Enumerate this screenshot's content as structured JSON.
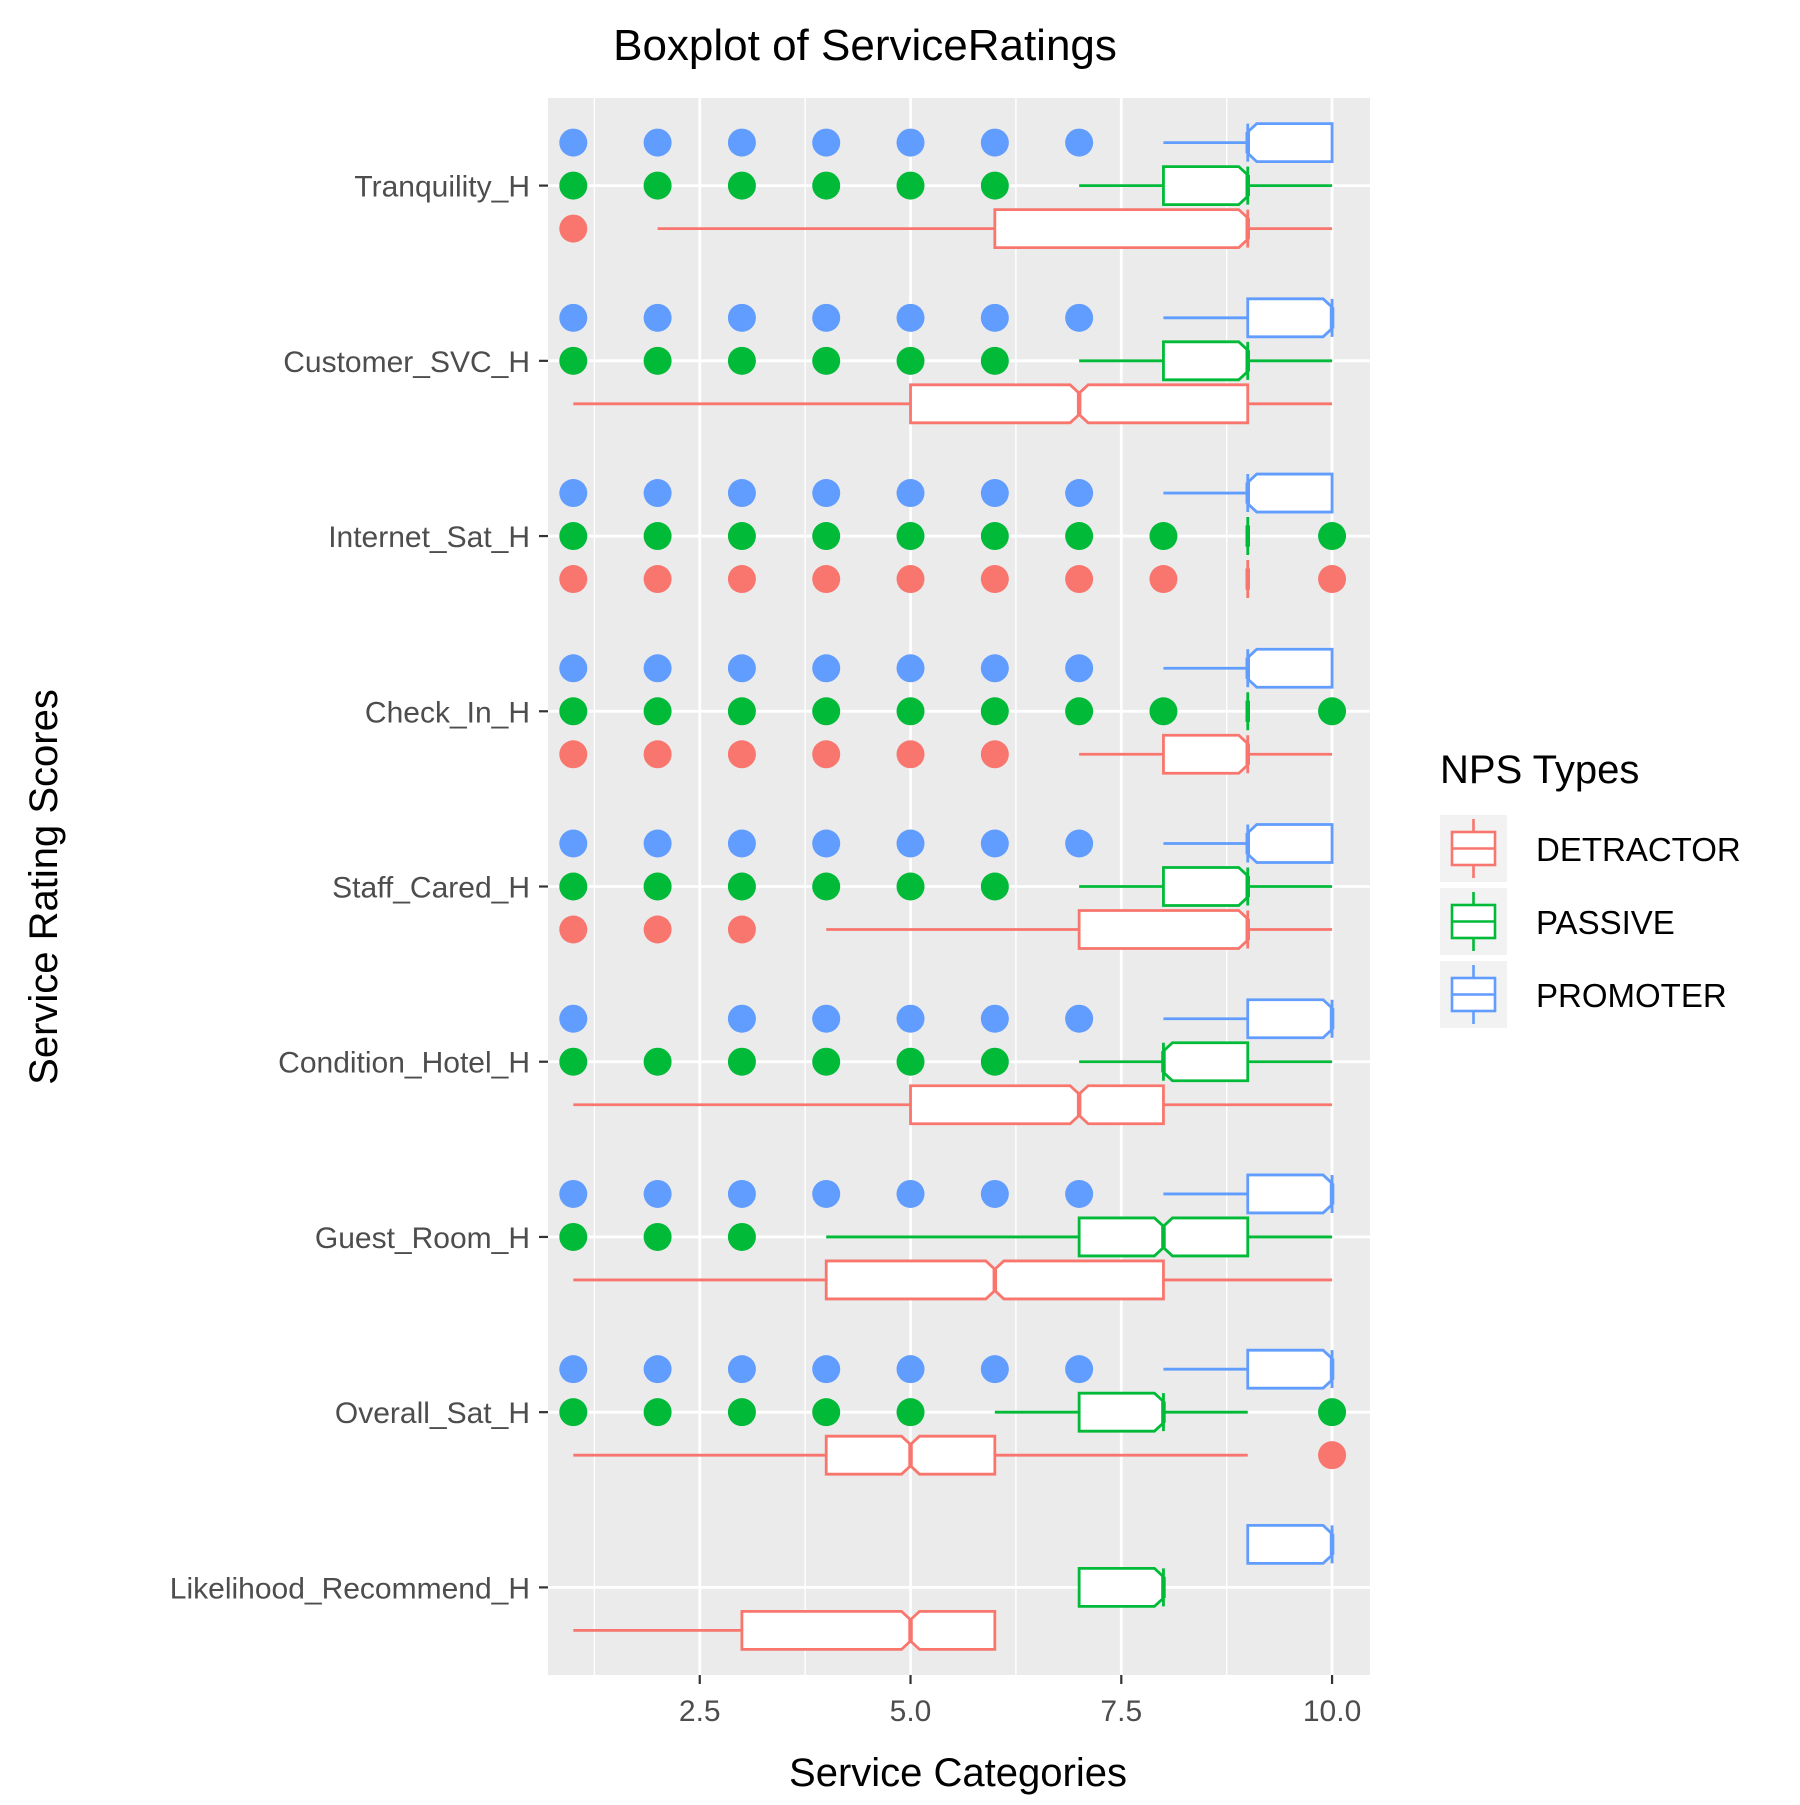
{
  "chart_data": {
    "type": "boxplot",
    "title": "Boxplot of ServiceRatings",
    "xlabel": "Service Categories",
    "ylabel": "Service Rating Scores",
    "orientation": "horizontal",
    "xlim": [
      0.7,
      10.45
    ],
    "x_ticks": [
      {
        "value": 2.5,
        "label": "2.5"
      },
      {
        "value": 5.0,
        "label": "5.0"
      },
      {
        "value": 7.5,
        "label": "7.5"
      },
      {
        "value": 10.0,
        "label": "10.0"
      }
    ],
    "categories": [
      "Tranquility_H",
      "Customer_SVC_H",
      "Internet_Sat_H",
      "Check_In_H",
      "Staff_Cared_H",
      "Condition_Hotel_H",
      "Guest_Room_H",
      "Overall_Sat_H",
      "Likelihood_Recommend_H"
    ],
    "grid": true,
    "legend": {
      "title": "NPS Types",
      "position": "right",
      "entries": [
        {
          "name": "DETRACTOR",
          "color": "#F8766D"
        },
        {
          "name": "PASSIVE",
          "color": "#00BA38"
        },
        {
          "name": "PROMOTER",
          "color": "#619CFF"
        }
      ]
    },
    "series": [
      {
        "name": "PROMOTER",
        "color": "#619CFF",
        "boxes": [
          {
            "category": "Tranquility_H",
            "whisker_low": 8,
            "q1": 9,
            "median": 9,
            "q3": 10,
            "whisker_high": 10,
            "outliers": [
              1,
              2,
              3,
              4,
              5,
              6,
              7
            ]
          },
          {
            "category": "Customer_SVC_H",
            "whisker_low": 8,
            "q1": 9,
            "median": 10,
            "q3": 10,
            "whisker_high": 10,
            "outliers": [
              1,
              2,
              3,
              4,
              5,
              6,
              7
            ]
          },
          {
            "category": "Internet_Sat_H",
            "whisker_low": 8,
            "q1": 9,
            "median": 9,
            "q3": 10,
            "whisker_high": 10,
            "outliers": [
              1,
              2,
              3,
              4,
              5,
              6,
              7
            ]
          },
          {
            "category": "Check_In_H",
            "whisker_low": 8,
            "q1": 9,
            "median": 9,
            "q3": 10,
            "whisker_high": 10,
            "outliers": [
              1,
              2,
              3,
              4,
              5,
              6,
              7
            ]
          },
          {
            "category": "Staff_Cared_H",
            "whisker_low": 8,
            "q1": 9,
            "median": 9,
            "q3": 10,
            "whisker_high": 10,
            "outliers": [
              1,
              2,
              3,
              4,
              5,
              6,
              7
            ]
          },
          {
            "category": "Condition_Hotel_H",
            "whisker_low": 8,
            "q1": 9,
            "median": 10,
            "q3": 10,
            "whisker_high": 10,
            "outliers": [
              1,
              3,
              4,
              5,
              6,
              7
            ]
          },
          {
            "category": "Guest_Room_H",
            "whisker_low": 8,
            "q1": 9,
            "median": 10,
            "q3": 10,
            "whisker_high": 10,
            "outliers": [
              1,
              2,
              3,
              4,
              5,
              6,
              7
            ]
          },
          {
            "category": "Overall_Sat_H",
            "whisker_low": 8,
            "q1": 9,
            "median": 10,
            "q3": 10,
            "whisker_high": 10,
            "outliers": [
              1,
              2,
              3,
              4,
              5,
              6,
              7
            ]
          },
          {
            "category": "Likelihood_Recommend_H",
            "whisker_low": 9,
            "q1": 9,
            "median": 10,
            "q3": 10,
            "whisker_high": 10,
            "outliers": []
          }
        ]
      },
      {
        "name": "PASSIVE",
        "color": "#00BA38",
        "boxes": [
          {
            "category": "Tranquility_H",
            "whisker_low": 7,
            "q1": 8,
            "median": 9,
            "q3": 9,
            "whisker_high": 10,
            "outliers": [
              1,
              2,
              3,
              4,
              5,
              6
            ]
          },
          {
            "category": "Customer_SVC_H",
            "whisker_low": 7,
            "q1": 8,
            "median": 9,
            "q3": 9,
            "whisker_high": 10,
            "outliers": [
              1,
              2,
              3,
              4,
              5,
              6
            ]
          },
          {
            "category": "Internet_Sat_H",
            "whisker_low": 9,
            "q1": 9,
            "median": 9,
            "q3": 9,
            "whisker_high": 9,
            "outliers": [
              1,
              2,
              3,
              4,
              5,
              6,
              7,
              8,
              10
            ]
          },
          {
            "category": "Check_In_H",
            "whisker_low": 9,
            "q1": 9,
            "median": 9,
            "q3": 9,
            "whisker_high": 9,
            "outliers": [
              1,
              2,
              3,
              4,
              5,
              6,
              7,
              8,
              10
            ]
          },
          {
            "category": "Staff_Cared_H",
            "whisker_low": 7,
            "q1": 8,
            "median": 9,
            "q3": 9,
            "whisker_high": 10,
            "outliers": [
              1,
              2,
              3,
              4,
              5,
              6
            ]
          },
          {
            "category": "Condition_Hotel_H",
            "whisker_low": 7,
            "q1": 8,
            "median": 8,
            "q3": 9,
            "whisker_high": 10,
            "outliers": [
              1,
              2,
              3,
              4,
              5,
              6
            ]
          },
          {
            "category": "Guest_Room_H",
            "whisker_low": 4,
            "q1": 7,
            "median": 8,
            "q3": 9,
            "whisker_high": 10,
            "outliers": [
              1,
              2,
              3
            ]
          },
          {
            "category": "Overall_Sat_H",
            "whisker_low": 6,
            "q1": 7,
            "median": 8,
            "q3": 8,
            "whisker_high": 9,
            "outliers": [
              1,
              2,
              3,
              4,
              5,
              10
            ]
          },
          {
            "category": "Likelihood_Recommend_H",
            "whisker_low": 7,
            "q1": 7,
            "median": 8,
            "q3": 8,
            "whisker_high": 8,
            "outliers": []
          }
        ]
      },
      {
        "name": "DETRACTOR",
        "color": "#F8766D",
        "boxes": [
          {
            "category": "Tranquility_H",
            "whisker_low": 2,
            "q1": 6,
            "median": 9,
            "q3": 9,
            "whisker_high": 10,
            "outliers": [
              1
            ]
          },
          {
            "category": "Customer_SVC_H",
            "whisker_low": 1,
            "q1": 5,
            "median": 7,
            "q3": 9,
            "whisker_high": 10,
            "outliers": []
          },
          {
            "category": "Internet_Sat_H",
            "whisker_low": 9,
            "q1": 9,
            "median": 9,
            "q3": 9,
            "whisker_high": 9,
            "outliers": [
              1,
              2,
              3,
              4,
              5,
              6,
              7,
              8,
              10
            ]
          },
          {
            "category": "Check_In_H",
            "whisker_low": 7,
            "q1": 8,
            "median": 9,
            "q3": 9,
            "whisker_high": 10,
            "outliers": [
              1,
              2,
              3,
              4,
              5,
              6
            ]
          },
          {
            "category": "Staff_Cared_H",
            "whisker_low": 4,
            "q1": 7,
            "median": 9,
            "q3": 9,
            "whisker_high": 10,
            "outliers": [
              1,
              2,
              3
            ]
          },
          {
            "category": "Condition_Hotel_H",
            "whisker_low": 1,
            "q1": 5,
            "median": 7,
            "q3": 8,
            "whisker_high": 10,
            "outliers": []
          },
          {
            "category": "Guest_Room_H",
            "whisker_low": 1,
            "q1": 4,
            "median": 6,
            "q3": 8,
            "whisker_high": 10,
            "outliers": []
          },
          {
            "category": "Overall_Sat_H",
            "whisker_low": 1,
            "q1": 4,
            "median": 5,
            "q3": 6,
            "whisker_high": 9,
            "outliers": [
              10
            ]
          },
          {
            "category": "Likelihood_Recommend_H",
            "whisker_low": 1,
            "q1": 3,
            "median": 5,
            "q3": 6,
            "whisker_high": 6,
            "outliers": []
          }
        ]
      }
    ]
  }
}
